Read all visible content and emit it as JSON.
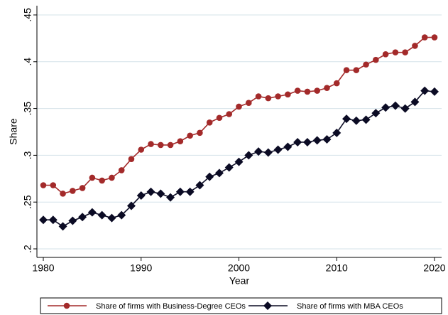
{
  "chart_data": {
    "type": "line",
    "xlabel": "Year",
    "ylabel": "Share",
    "x": [
      1980,
      1981,
      1982,
      1983,
      1984,
      1985,
      1986,
      1987,
      1988,
      1989,
      1990,
      1991,
      1992,
      1993,
      1994,
      1995,
      1996,
      1997,
      1998,
      1999,
      2000,
      2001,
      2002,
      2003,
      2004,
      2005,
      2006,
      2007,
      2008,
      2009,
      2010,
      2011,
      2012,
      2013,
      2014,
      2015,
      2016,
      2017,
      2018,
      2019,
      2020
    ],
    "series": [
      {
        "name": "Share of firms with Business-Degree CEOs",
        "color": "#a32a2a",
        "marker": "circle",
        "values": [
          0.268,
          0.268,
          0.259,
          0.262,
          0.265,
          0.276,
          0.273,
          0.276,
          0.284,
          0.296,
          0.306,
          0.312,
          0.311,
          0.311,
          0.315,
          0.321,
          0.324,
          0.335,
          0.34,
          0.344,
          0.352,
          0.356,
          0.363,
          0.361,
          0.363,
          0.365,
          0.369,
          0.368,
          0.369,
          0.372,
          0.377,
          0.391,
          0.391,
          0.397,
          0.402,
          0.408,
          0.41,
          0.41,
          0.417,
          0.426,
          0.426
        ]
      },
      {
        "name": "Share of firms with MBA CEOs",
        "color": "#0b0b24",
        "marker": "diamond",
        "values": [
          0.231,
          0.231,
          0.224,
          0.23,
          0.234,
          0.239,
          0.236,
          0.233,
          0.236,
          0.246,
          0.257,
          0.261,
          0.259,
          0.255,
          0.261,
          0.261,
          0.268,
          0.277,
          0.281,
          0.287,
          0.293,
          0.3,
          0.304,
          0.303,
          0.306,
          0.309,
          0.314,
          0.314,
          0.316,
          0.317,
          0.324,
          0.339,
          0.337,
          0.338,
          0.345,
          0.351,
          0.353,
          0.35,
          0.357,
          0.369,
          0.368
        ]
      }
    ],
    "xlim": [
      1980,
      2020
    ],
    "xticks": [
      1980,
      1990,
      2000,
      2010,
      2020
    ],
    "ylim": [
      0.2,
      0.45
    ],
    "yticks": [
      {
        "value": 0.2,
        "label": ".2"
      },
      {
        "value": 0.25,
        "label": ".25"
      },
      {
        "value": 0.3,
        "label": ".3"
      },
      {
        "value": 0.35,
        "label": ".35"
      },
      {
        "value": 0.4,
        "label": ".4"
      },
      {
        "value": 0.45,
        "label": ".45"
      }
    ],
    "grid": true,
    "legend": "bottom"
  }
}
